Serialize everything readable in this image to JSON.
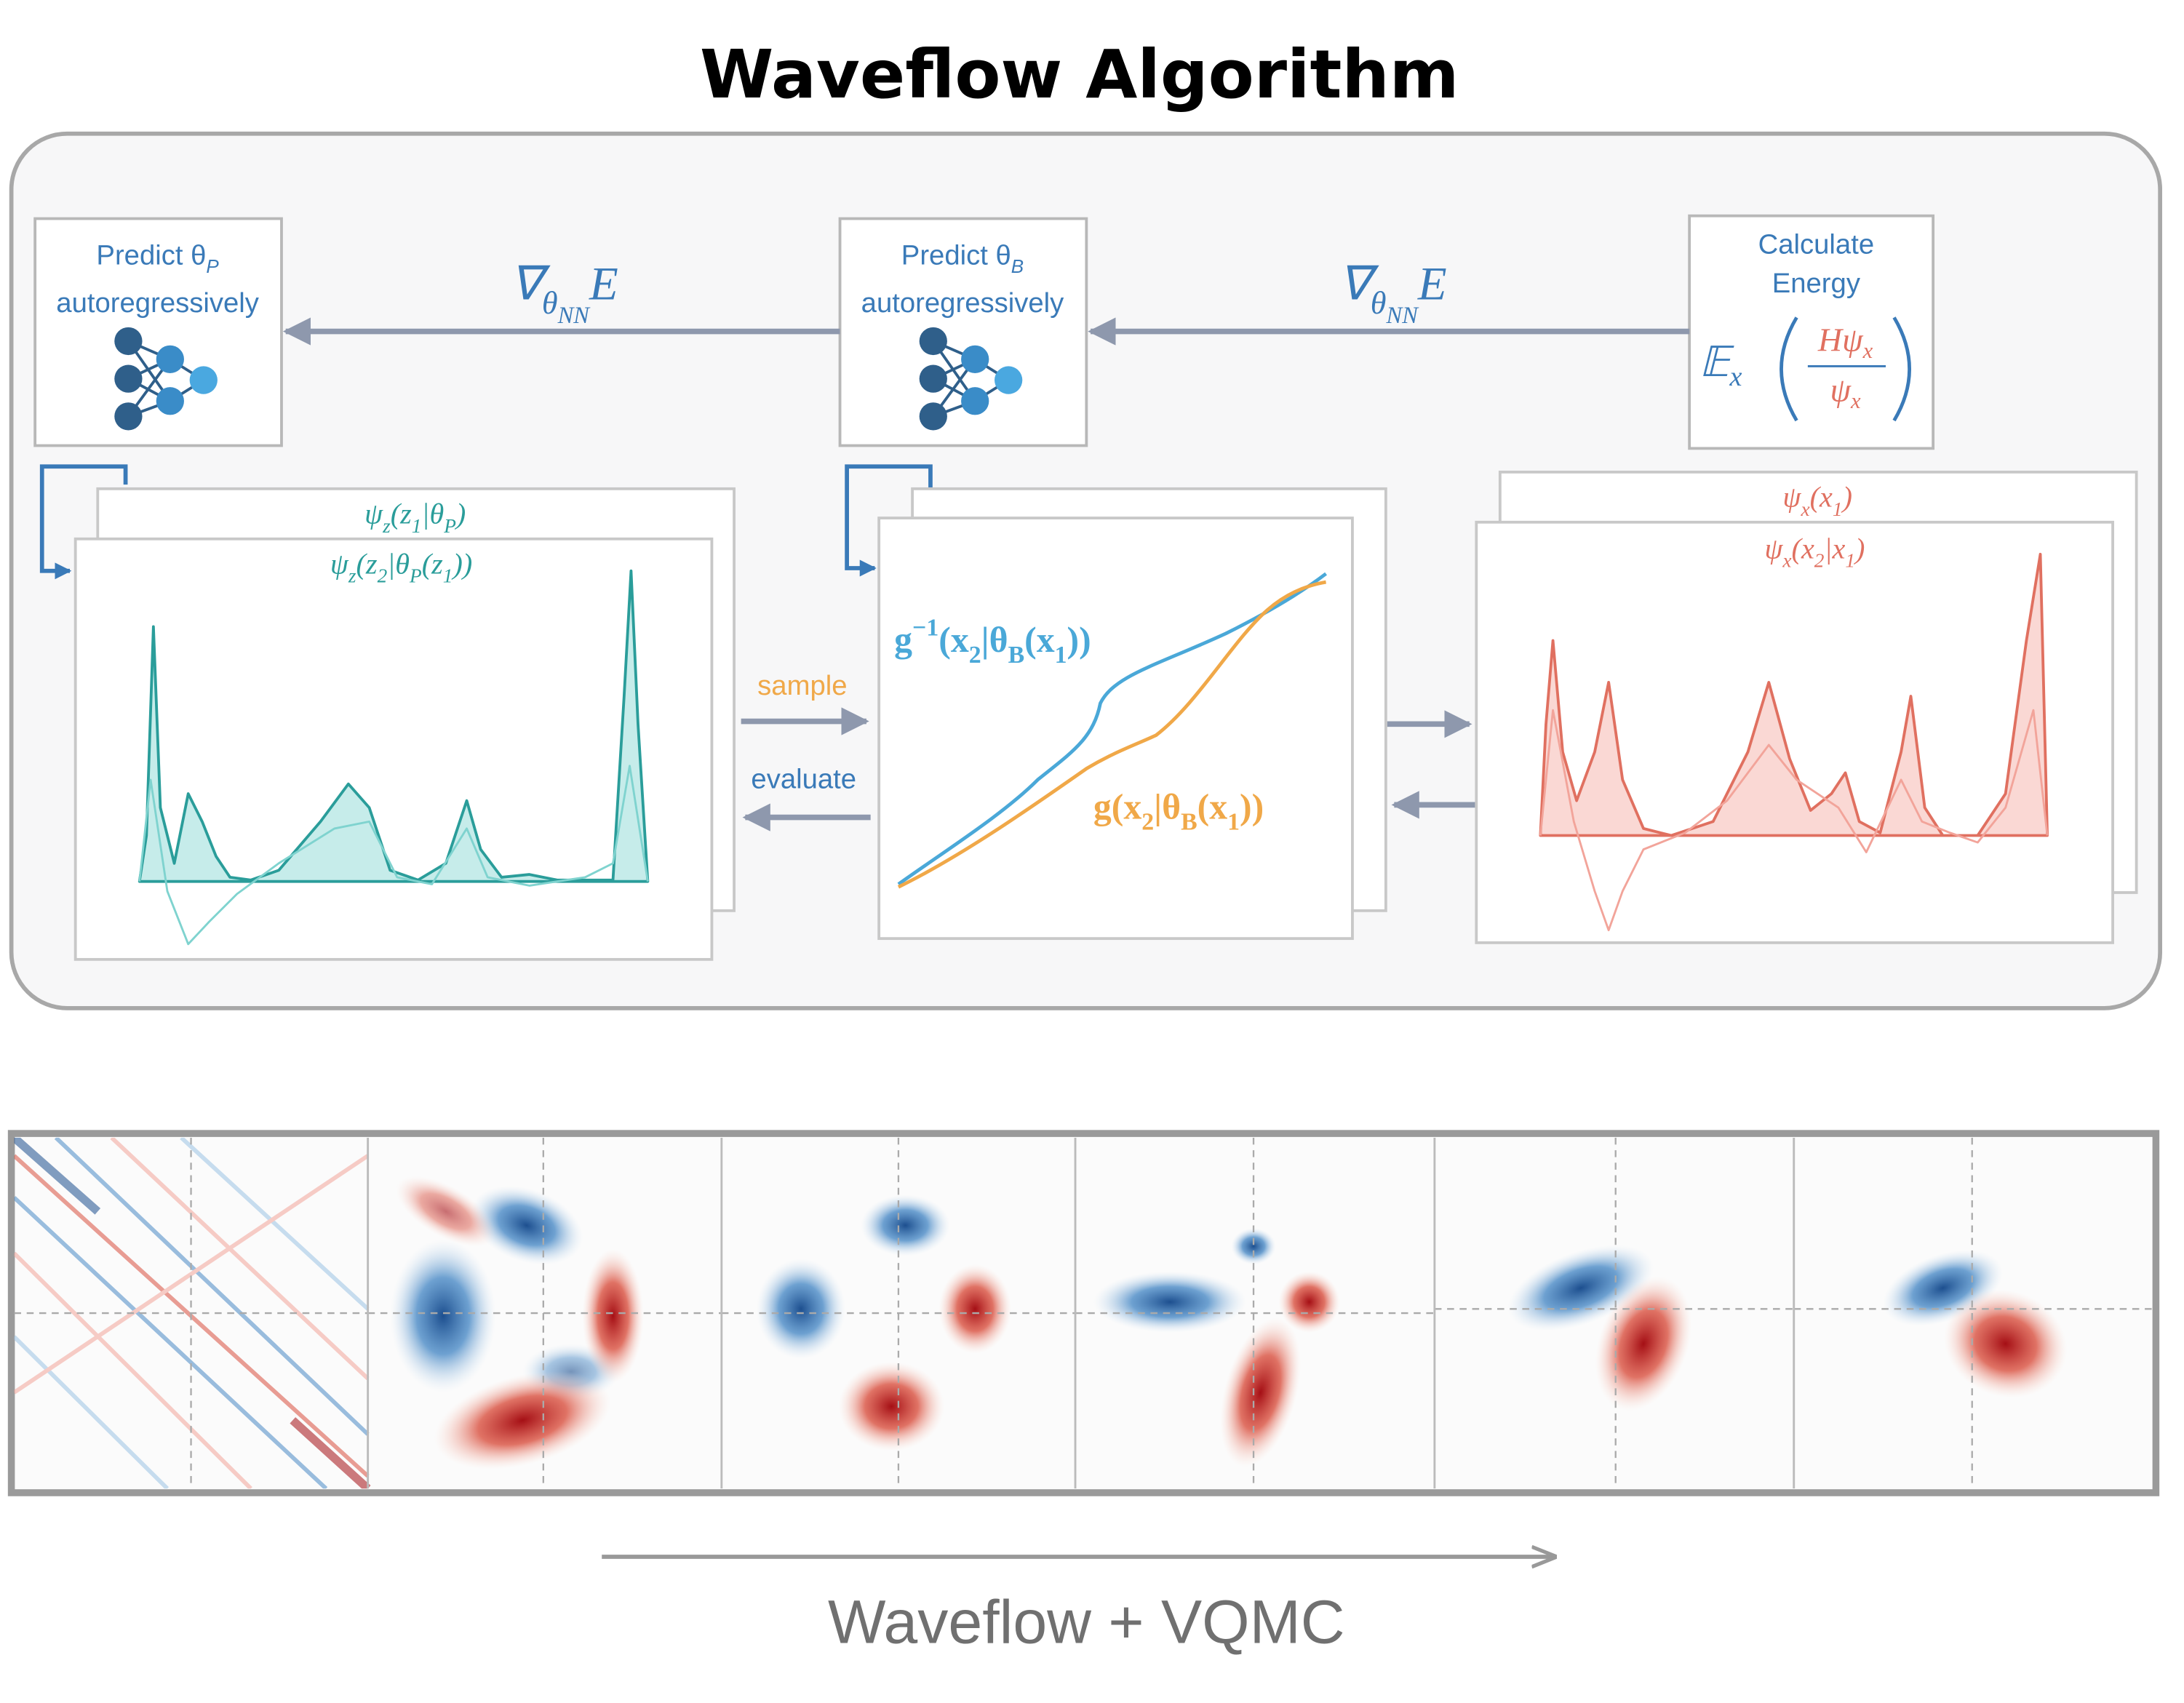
{
  "title": "Waveflow Algorithm",
  "boxes": [
    {
      "lines": [
        [
          {
            "text": "Predict θ"
          },
          {
            "sub": "P"
          }
        ],
        [
          {
            "text": "autoregressively"
          }
        ]
      ]
    },
    {
      "lines": [
        [
          {
            "text": "Predict θ"
          },
          {
            "sub": "B"
          }
        ],
        [
          {
            "text": "autoregressively"
          }
        ]
      ]
    },
    {
      "lines": [
        [
          {
            "text": "Calculate"
          }
        ],
        [
          {
            "text": "Energy"
          }
        ]
      ]
    }
  ],
  "energy_formula": {
    "expectation": "𝔼",
    "expectation_sub": "x",
    "numerator": "Hψ",
    "numerator_sub": "x",
    "denominator": "ψ",
    "denominator_sub": "x"
  },
  "gradients": [
    [
      {
        "text": "∇"
      },
      {
        "sub": "θ"
      },
      {
        "subsub": "NN"
      },
      {
        "text": "E"
      }
    ],
    [
      {
        "text": "∇"
      },
      {
        "sub": "θ"
      },
      {
        "subsub": "NN"
      },
      {
        "text": "E"
      }
    ]
  ],
  "plot_labels": {
    "psi_z1": [
      {
        "text": "ψ"
      },
      {
        "sub": "z"
      },
      {
        "text": "(z"
      },
      {
        "sub": "1"
      },
      {
        "text": "|θ"
      },
      {
        "sub": "P"
      },
      {
        "text": ")"
      }
    ],
    "psi_z2": [
      {
        "text": "ψ"
      },
      {
        "sub": "z"
      },
      {
        "text": "(z"
      },
      {
        "sub": "2"
      },
      {
        "text": "|θ"
      },
      {
        "sub": "P"
      },
      {
        "text": "(z"
      },
      {
        "sub": "1"
      },
      {
        "text": "))"
      }
    ],
    "g_inverse": [
      {
        "text": "g"
      },
      {
        "sup": "−1"
      },
      {
        "text": "(x"
      },
      {
        "sub": "2"
      },
      {
        "text": "|θ"
      },
      {
        "sub": "B"
      },
      {
        "text": "(x"
      },
      {
        "sub": "1"
      },
      {
        "text": "))"
      }
    ],
    "g": [
      {
        "text": "g(x"
      },
      {
        "sub": "2"
      },
      {
        "text": "|θ"
      },
      {
        "sub": "B"
      },
      {
        "text": "(x"
      },
      {
        "sub": "1"
      },
      {
        "text": "))"
      }
    ],
    "psi_x1": [
      {
        "text": "ψ"
      },
      {
        "sub": "x"
      },
      {
        "text": "(x"
      },
      {
        "sub": "1"
      },
      {
        "text": ")"
      }
    ],
    "psi_x2": [
      {
        "text": "ψ"
      },
      {
        "sub": "x"
      },
      {
        "text": "(x"
      },
      {
        "sub": "2"
      },
      {
        "text": "|x"
      },
      {
        "sub": "1"
      },
      {
        "text": ")"
      }
    ]
  },
  "arrow_labels": {
    "sample": "sample",
    "evaluate": "evaluate"
  },
  "footer": "Waveflow + VQMC"
}
